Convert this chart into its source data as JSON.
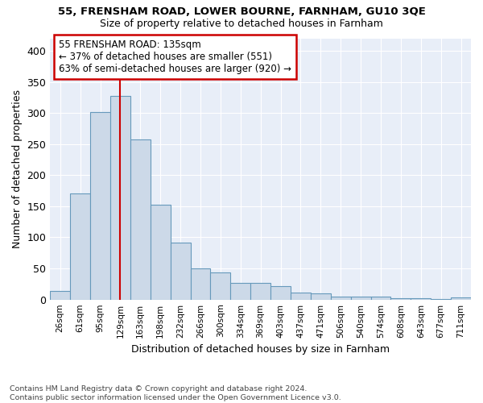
{
  "title1": "55, FRENSHAM ROAD, LOWER BOURNE, FARNHAM, GU10 3QE",
  "title2": "Size of property relative to detached houses in Farnham",
  "xlabel": "Distribution of detached houses by size in Farnham",
  "ylabel": "Number of detached properties",
  "categories": [
    "26sqm",
    "61sqm",
    "95sqm",
    "129sqm",
    "163sqm",
    "198sqm",
    "232sqm",
    "266sqm",
    "300sqm",
    "334sqm",
    "369sqm",
    "403sqm",
    "437sqm",
    "471sqm",
    "506sqm",
    "540sqm",
    "574sqm",
    "608sqm",
    "643sqm",
    "677sqm",
    "711sqm"
  ],
  "values": [
    14,
    170,
    302,
    328,
    258,
    152,
    91,
    50,
    43,
    27,
    27,
    22,
    11,
    10,
    5,
    5,
    5,
    2,
    2,
    1,
    4
  ],
  "bar_color": "#ccd9e8",
  "bar_edge_color": "#6699bb",
  "annotation_text1": "55 FRENSHAM ROAD: 135sqm",
  "annotation_text2": "← 37% of detached houses are smaller (551)",
  "annotation_text3": "63% of semi-detached houses are larger (920) →",
  "footer": "Contains HM Land Registry data © Crown copyright and database right 2024.\nContains public sector information licensed under the Open Government Licence v3.0.",
  "background_color": "#ffffff",
  "plot_bg_color": "#e8eef8",
  "grid_color": "#ffffff",
  "annotation_box_color": "#ffffff",
  "annotation_box_edge": "#cc0000",
  "red_line_color": "#cc0000",
  "yticks": [
    0,
    50,
    100,
    150,
    200,
    250,
    300,
    350,
    400
  ],
  "ylim": [
    0,
    420
  ]
}
